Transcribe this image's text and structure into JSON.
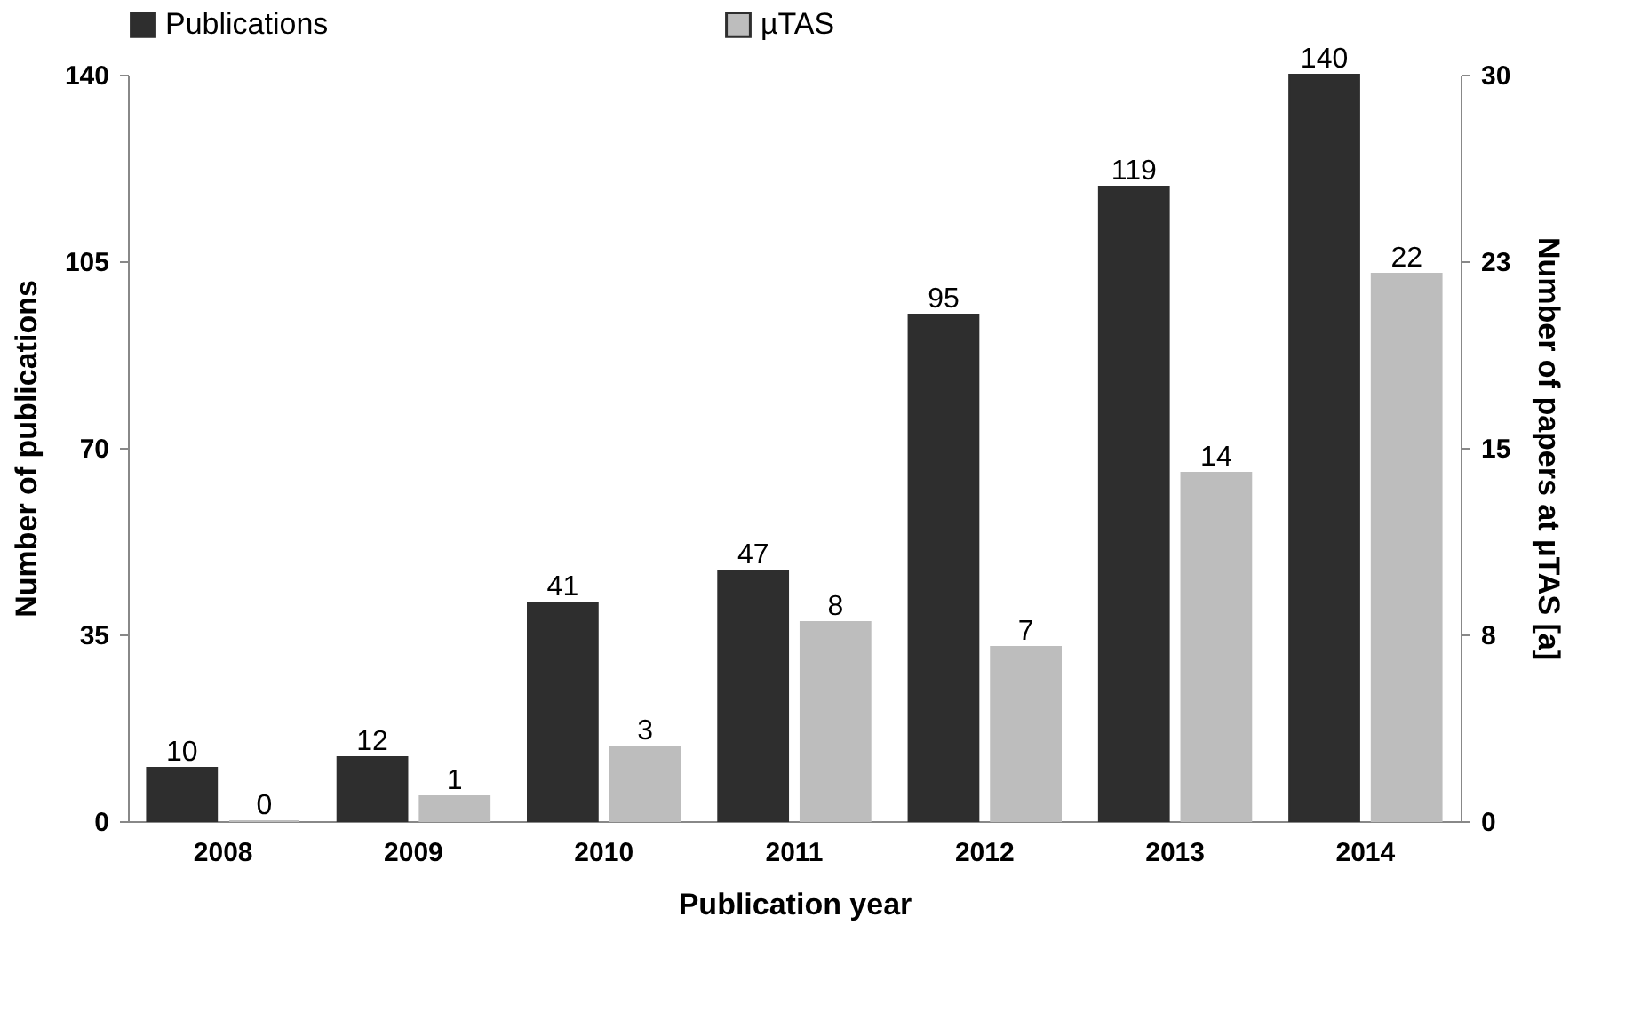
{
  "chart_data": {
    "type": "bar",
    "xlabel": "Publication year",
    "ylabel": "Number of publications",
    "y2label": "Number of papers at µTAS [a]",
    "categories": [
      "2008",
      "2009",
      "2010",
      "2011",
      "2012",
      "2013",
      "2014"
    ],
    "series": [
      {
        "name": "Publications",
        "color": "#2e2e2e",
        "values": [
          10,
          12,
          41,
          47,
          95,
          119,
          140
        ]
      },
      {
        "name": "µTAS",
        "color": "#bdbdbd",
        "axis": "y2",
        "values": [
          0,
          1,
          3,
          8,
          7,
          14,
          22
        ]
      }
    ],
    "ylim": [
      0,
      140
    ],
    "yticks": [
      0,
      35,
      70,
      105,
      140
    ],
    "y2lim": [
      0,
      30
    ],
    "y2ticks": [
      0,
      {
        "value": 7.5,
        "label": "8"
      },
      15,
      {
        "value": 22.5,
        "label": "23"
      },
      30
    ],
    "data_labels": true,
    "grid": false,
    "legend": "top"
  }
}
